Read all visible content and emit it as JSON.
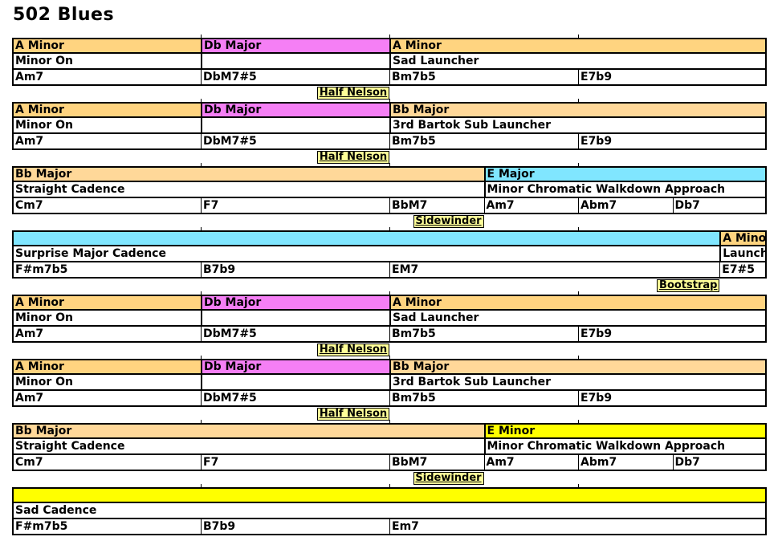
{
  "title": "502 Blues",
  "colors": {
    "A Minor": "#ffd480",
    "Db Major": "#f57ff5",
    "Bb Major": "#ffd899",
    "E Major": "#80e6ff",
    "E Minor": "#ffff00"
  },
  "rows": [
    {
      "keys": [
        {
          "label": "A Minor",
          "span": 2,
          "color": "A Minor"
        },
        {
          "label": "Db Major",
          "span": 2,
          "color": "Db Major"
        },
        {
          "label": "A Minor",
          "span": 4,
          "color": "A Minor"
        }
      ],
      "functions": [
        {
          "label": "Minor On",
          "span": 2
        },
        {
          "label": "",
          "span": 2
        },
        {
          "label": "Sad Launcher",
          "span": 4
        }
      ],
      "chords": [
        {
          "label": "Am7",
          "span": 2
        },
        {
          "label": "DbM7#5",
          "span": 2
        },
        {
          "label": "Bm7b5",
          "span": 2
        },
        {
          "label": "E7b9",
          "span": 2
        }
      ],
      "connector": {
        "label": "Half Nelson",
        "beat": 4
      }
    },
    {
      "keys": [
        {
          "label": "A Minor",
          "span": 2,
          "color": "A Minor"
        },
        {
          "label": "Db Major",
          "span": 2,
          "color": "Db Major"
        },
        {
          "label": "Bb Major",
          "span": 4,
          "color": "Bb Major"
        }
      ],
      "functions": [
        {
          "label": "Minor On",
          "span": 2
        },
        {
          "label": "",
          "span": 2
        },
        {
          "label": "3rd Bartok Sub Launcher",
          "span": 4
        }
      ],
      "chords": [
        {
          "label": "Am7",
          "span": 2
        },
        {
          "label": "DbM7#5",
          "span": 2
        },
        {
          "label": "Bm7b5",
          "span": 2
        },
        {
          "label": "E7b9",
          "span": 2
        }
      ],
      "connector": {
        "label": "Half Nelson",
        "beat": 4
      }
    },
    {
      "keys": [
        {
          "label": "Bb Major",
          "span": 5,
          "color": "Bb Major"
        },
        {
          "label": "E Major",
          "span": 3,
          "color": "E Major"
        }
      ],
      "functions": [
        {
          "label": "Straight Cadence",
          "span": 5
        },
        {
          "label": "Minor Chromatic Walkdown Approach",
          "span": 3
        }
      ],
      "chords": [
        {
          "label": "Cm7",
          "span": 2
        },
        {
          "label": "F7",
          "span": 2
        },
        {
          "label": "BbM7",
          "span": 1
        },
        {
          "label": "Am7",
          "span": 1
        },
        {
          "label": "Abm7",
          "span": 1
        },
        {
          "label": "Db7",
          "span": 1
        }
      ],
      "connector": {
        "label": "Sidewinder",
        "beat": 5
      }
    },
    {
      "keys": [
        {
          "label": "",
          "span": 7.5,
          "color": "E Major"
        },
        {
          "label": "A Minor",
          "span": 0.5,
          "color": "A Minor"
        }
      ],
      "functions": [
        {
          "label": "Surprise Major Cadence",
          "span": 7.5
        },
        {
          "label": "Launcher",
          "span": 0.5
        }
      ],
      "chords": [
        {
          "label": "F#m7b5",
          "span": 2
        },
        {
          "label": "B7b9",
          "span": 2
        },
        {
          "label": "EM7",
          "span": 3.5
        },
        {
          "label": "E7#5",
          "span": 0.5
        }
      ],
      "connector": {
        "label": "Bootstrap",
        "beat": 7.5
      }
    },
    {
      "keys": [
        {
          "label": "A Minor",
          "span": 2,
          "color": "A Minor"
        },
        {
          "label": "Db Major",
          "span": 2,
          "color": "Db Major"
        },
        {
          "label": "A Minor",
          "span": 4,
          "color": "A Minor"
        }
      ],
      "functions": [
        {
          "label": "Minor On",
          "span": 2
        },
        {
          "label": "",
          "span": 2
        },
        {
          "label": "Sad Launcher",
          "span": 4
        }
      ],
      "chords": [
        {
          "label": "Am7",
          "span": 2
        },
        {
          "label": "DbM7#5",
          "span": 2
        },
        {
          "label": "Bm7b5",
          "span": 2
        },
        {
          "label": "E7b9",
          "span": 2
        }
      ],
      "connector": {
        "label": "Half Nelson",
        "beat": 4
      }
    },
    {
      "keys": [
        {
          "label": "A Minor",
          "span": 2,
          "color": "A Minor"
        },
        {
          "label": "Db Major",
          "span": 2,
          "color": "Db Major"
        },
        {
          "label": "Bb Major",
          "span": 4,
          "color": "Bb Major"
        }
      ],
      "functions": [
        {
          "label": "Minor On",
          "span": 2
        },
        {
          "label": "",
          "span": 2
        },
        {
          "label": "3rd Bartok Sub Launcher",
          "span": 4
        }
      ],
      "chords": [
        {
          "label": "Am7",
          "span": 2
        },
        {
          "label": "DbM7#5",
          "span": 2
        },
        {
          "label": "Bm7b5",
          "span": 2
        },
        {
          "label": "E7b9",
          "span": 2
        }
      ],
      "connector": {
        "label": "Half Nelson",
        "beat": 4
      }
    },
    {
      "keys": [
        {
          "label": "Bb Major",
          "span": 5,
          "color": "Bb Major"
        },
        {
          "label": "E Minor",
          "span": 3,
          "color": "E Minor"
        }
      ],
      "functions": [
        {
          "label": "Straight Cadence",
          "span": 5
        },
        {
          "label": "Minor Chromatic Walkdown Approach",
          "span": 3
        }
      ],
      "chords": [
        {
          "label": "Cm7",
          "span": 2
        },
        {
          "label": "F7",
          "span": 2
        },
        {
          "label": "BbM7",
          "span": 1
        },
        {
          "label": "Am7",
          "span": 1
        },
        {
          "label": "Abm7",
          "span": 1
        },
        {
          "label": "Db7",
          "span": 1
        }
      ],
      "connector": {
        "label": "Sidewinder",
        "beat": 5
      }
    },
    {
      "keys": [
        {
          "label": "",
          "span": 8,
          "color": "E Minor"
        }
      ],
      "functions": [
        {
          "label": "Sad Cadence",
          "span": 8
        }
      ],
      "chords": [
        {
          "label": "F#m7b5",
          "span": 2
        },
        {
          "label": "B7b9",
          "span": 2
        },
        {
          "label": "Em7",
          "span": 4
        }
      ],
      "connector": null
    }
  ]
}
